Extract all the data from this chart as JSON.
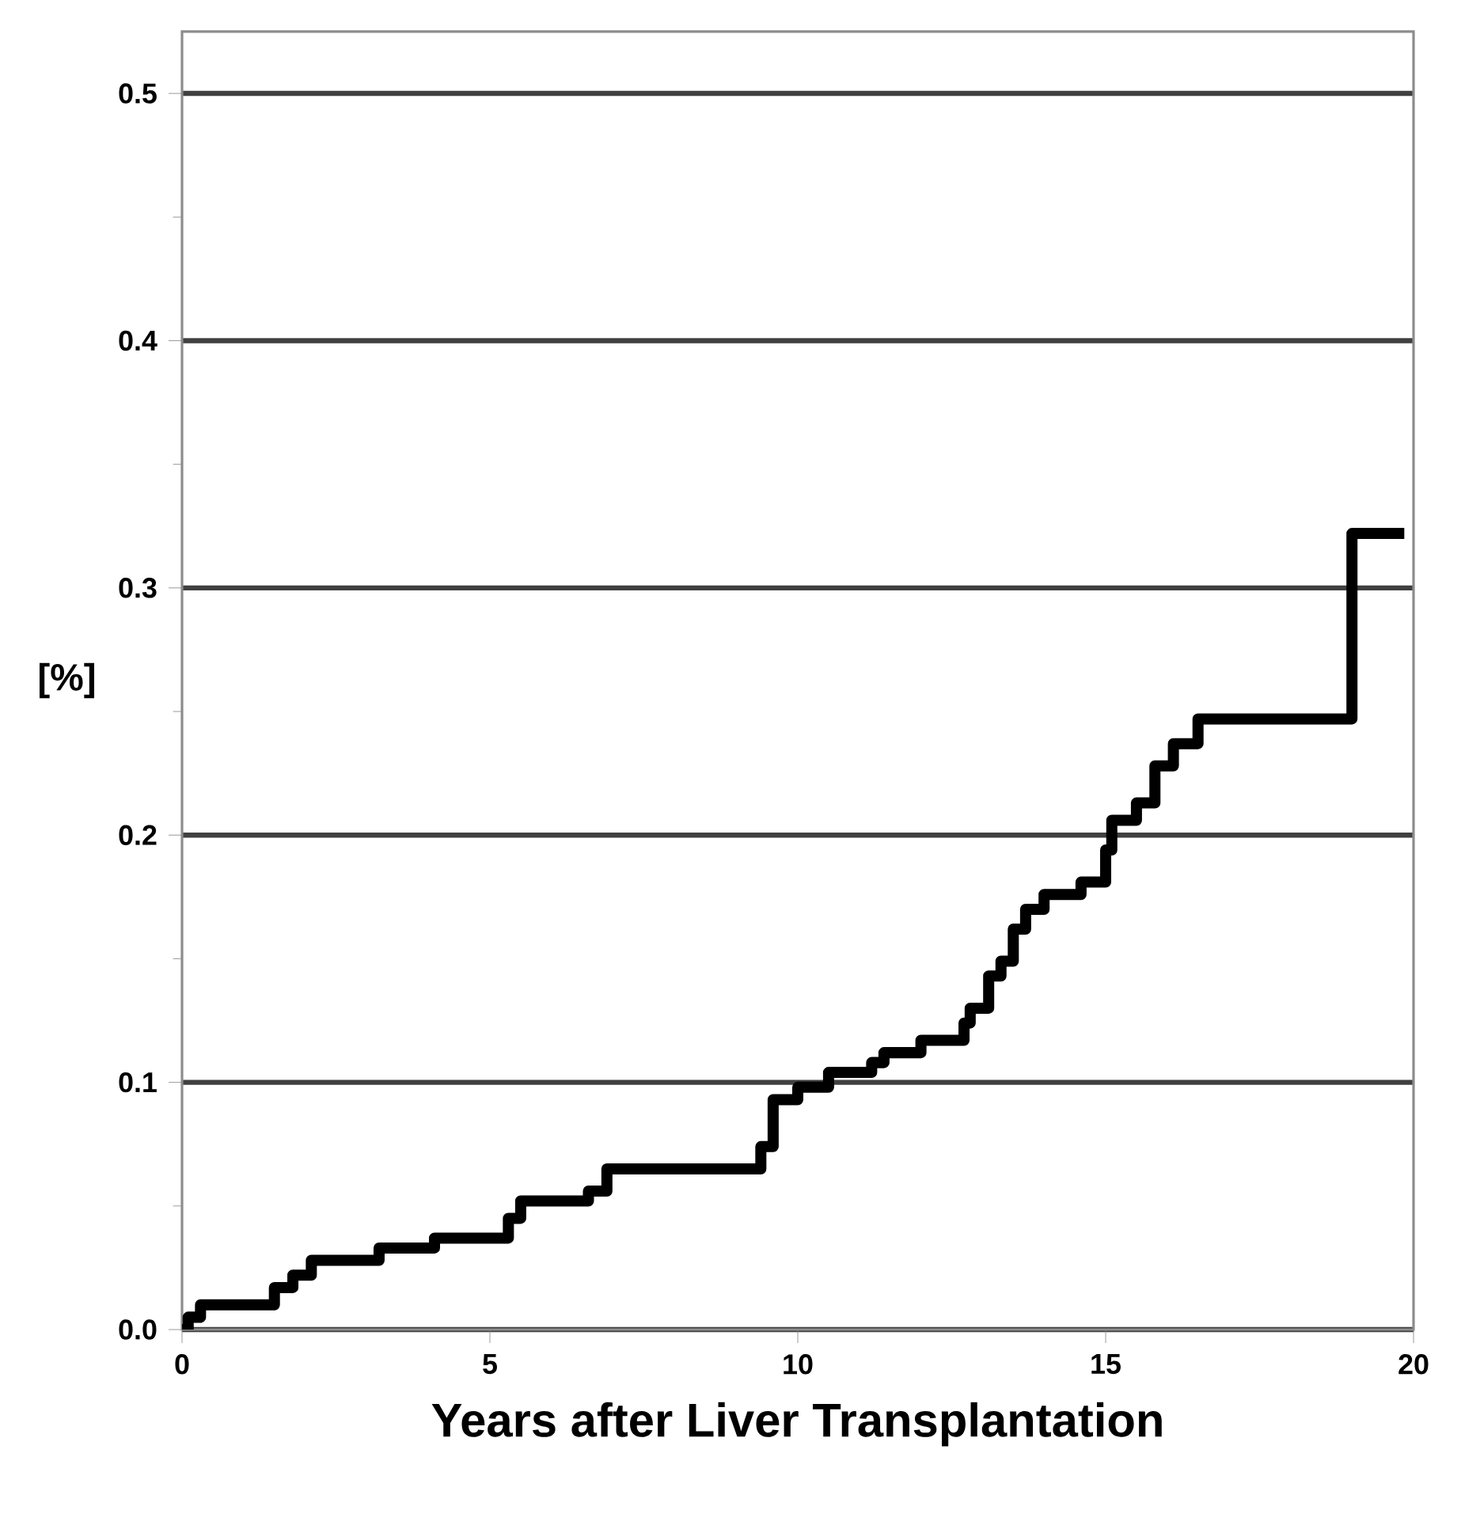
{
  "chart_data": {
    "type": "step",
    "xlabel": "Years after Liver Transplantation",
    "ylabel": "[%]",
    "x": [
      0,
      0.1,
      0.3,
      1.5,
      1.8,
      2.1,
      3.2,
      4.1,
      5.3,
      5.5,
      6.6,
      6.9,
      9.4,
      9.6,
      10.0,
      10.5,
      11.2,
      11.4,
      12.0,
      12.7,
      12.8,
      13.1,
      13.3,
      13.5,
      13.7,
      14.0,
      14.6,
      15.0,
      15.1,
      15.5,
      15.8,
      16.1,
      16.5,
      19.0,
      19.85
    ],
    "values": [
      0,
      0.005,
      0.01,
      0.017,
      0.022,
      0.028,
      0.033,
      0.037,
      0.045,
      0.052,
      0.056,
      0.065,
      0.074,
      0.093,
      0.098,
      0.104,
      0.108,
      0.112,
      0.117,
      0.124,
      0.13,
      0.143,
      0.149,
      0.162,
      0.17,
      0.176,
      0.181,
      0.194,
      0.206,
      0.213,
      0.228,
      0.237,
      0.247,
      0.322,
      0.322
    ],
    "color": "#000000",
    "xlim": [
      0,
      20
    ],
    "ylim": [
      0,
      0.525
    ],
    "xticks": [
      0,
      5,
      10,
      15,
      20
    ],
    "yticks": [
      {
        "value": 0,
        "label": "0.0"
      },
      {
        "value": 0.1,
        "label": "0.1"
      },
      {
        "value": 0.2,
        "label": "0.2"
      },
      {
        "value": 0.3,
        "label": "0.3"
      },
      {
        "value": 0.4,
        "label": "0.4"
      },
      {
        "value": 0.5,
        "label": "0.5"
      }
    ],
    "grid": "y"
  }
}
